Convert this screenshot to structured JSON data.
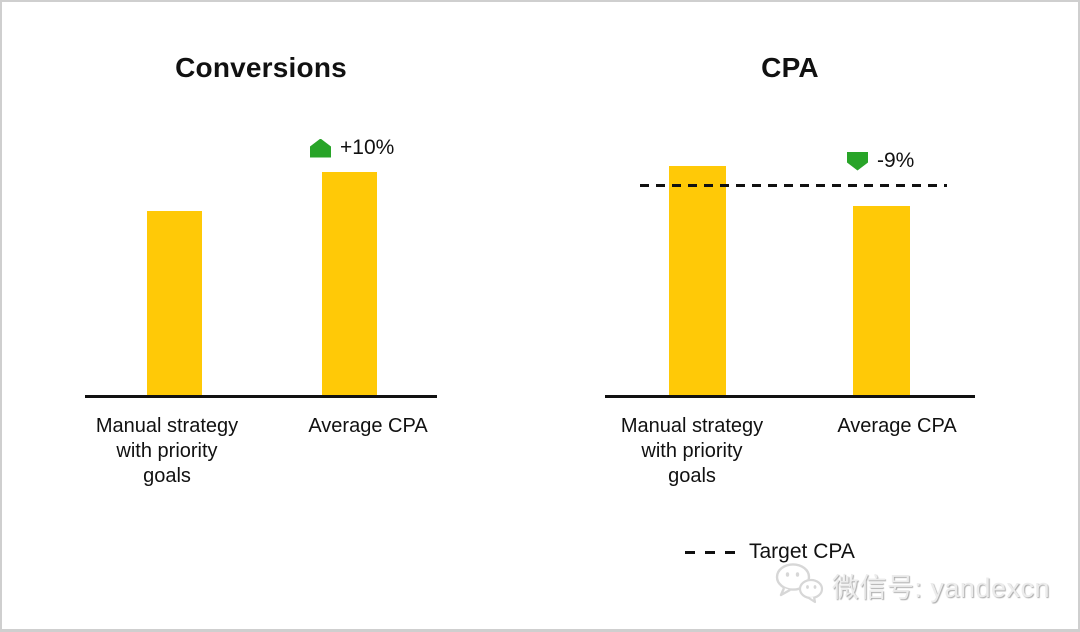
{
  "page": {
    "background": "#ffffff",
    "border_color": "#cfcfcf",
    "axis_color": "#111111"
  },
  "chart_data": [
    {
      "type": "bar",
      "title": "Conversions",
      "categories": [
        "Manual strategy with priority goals",
        "Average CPA"
      ],
      "categories_display": [
        "Manual strategy\nwith priority\ngoals",
        "Average CPA"
      ],
      "values": [
        100,
        121
      ],
      "ylim": [
        0,
        137.5
      ],
      "bar_color": "#FFC907",
      "grid": false,
      "annotation": {
        "text": "+10%",
        "direction": "up",
        "color": "#28A428",
        "applies_to": "Average CPA"
      }
    },
    {
      "type": "bar",
      "title": "CPA",
      "categories": [
        "Manual strategy with priority goals",
        "Average CPA"
      ],
      "categories_display": [
        "Manual strategy\nwith priority\ngoals",
        "Average CPA"
      ],
      "values": [
        110,
        91
      ],
      "ylim": [
        0,
        122
      ],
      "bar_color": "#FFC907",
      "grid": false,
      "target": {
        "label": "Target CPA",
        "value": 100,
        "style": "dashed",
        "color": "#111111"
      },
      "annotation": {
        "text": "-9%",
        "direction": "down",
        "color": "#28A428",
        "applies_to": "Average CPA"
      }
    }
  ],
  "legend": {
    "dash_label": "Target CPA",
    "dash_color": "#111111",
    "position": "bottom-center-right"
  },
  "watermark": {
    "icon": "wechat-icon",
    "text": "微信号: yandexcn",
    "color": "#d9d9d9"
  }
}
